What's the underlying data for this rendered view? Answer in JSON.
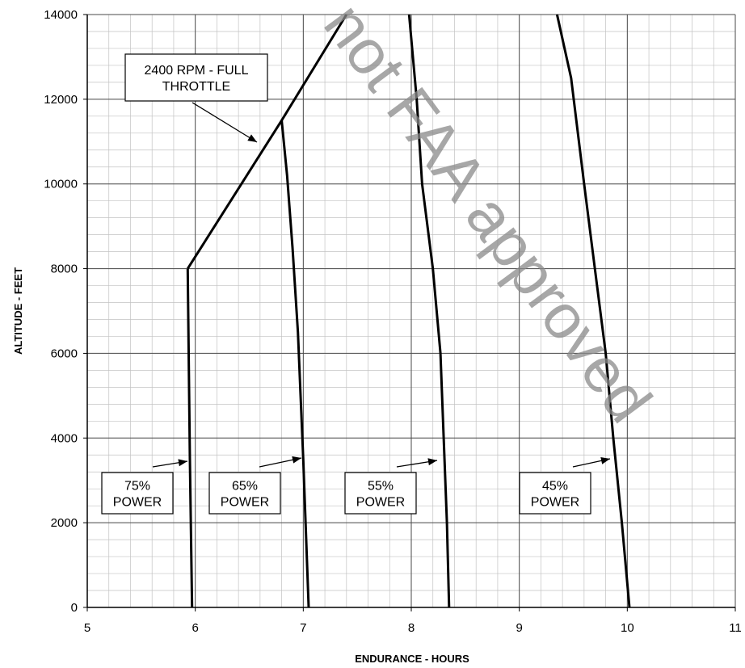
{
  "chart_data": {
    "type": "line",
    "title": "",
    "xlabel": "ENDURANCE - HOURS",
    "ylabel": "ALTITUDE - FEET",
    "xlim": [
      5,
      11
    ],
    "ylim": [
      0,
      14000
    ],
    "x_ticks": [
      "5",
      "6",
      "7",
      "8",
      "9",
      "10",
      "11"
    ],
    "y_ticks": [
      "0",
      "2000",
      "4000",
      "6000",
      "8000",
      "10000",
      "12000",
      "14000"
    ],
    "grid": true,
    "series": [
      {
        "name": "75% POWER",
        "points": [
          [
            5.97,
            0
          ],
          [
            5.95,
            3500
          ],
          [
            5.93,
            8000
          ]
        ]
      },
      {
        "name": "2400 RPM - FULL THROTTLE",
        "points": [
          [
            5.93,
            8000
          ],
          [
            6.8,
            11500
          ],
          [
            7.4,
            14000
          ]
        ]
      },
      {
        "name": "65% POWER",
        "points": [
          [
            7.05,
            0
          ],
          [
            7.0,
            3500
          ],
          [
            6.95,
            6500
          ],
          [
            6.9,
            8500
          ],
          [
            6.85,
            10200
          ],
          [
            6.8,
            11500
          ]
        ]
      },
      {
        "name": "55% POWER",
        "points": [
          [
            8.35,
            0
          ],
          [
            8.33,
            2000
          ],
          [
            8.3,
            4000
          ],
          [
            8.27,
            6000
          ],
          [
            8.2,
            8000
          ],
          [
            8.1,
            10000
          ],
          [
            8.05,
            12000
          ],
          [
            7.98,
            14000
          ]
        ]
      },
      {
        "name": "45% POWER",
        "points": [
          [
            10.02,
            0
          ],
          [
            9.95,
            2000
          ],
          [
            9.87,
            4000
          ],
          [
            9.8,
            6000
          ],
          [
            9.7,
            8000
          ],
          [
            9.6,
            10000
          ],
          [
            9.48,
            12500
          ],
          [
            9.35,
            14000
          ]
        ]
      }
    ],
    "annotations": [
      {
        "id": "fullthrottle",
        "lines": [
          "2400 RPM - FULL",
          "THROTTLE"
        ]
      },
      {
        "id": "p75",
        "lines": [
          "75%",
          "POWER"
        ]
      },
      {
        "id": "p65",
        "lines": [
          "65%",
          "POWER"
        ]
      },
      {
        "id": "p55",
        "lines": [
          "55%",
          "POWER"
        ]
      },
      {
        "id": "p45",
        "lines": [
          "45%",
          "POWER"
        ]
      }
    ],
    "watermark": "not FAA approved"
  }
}
